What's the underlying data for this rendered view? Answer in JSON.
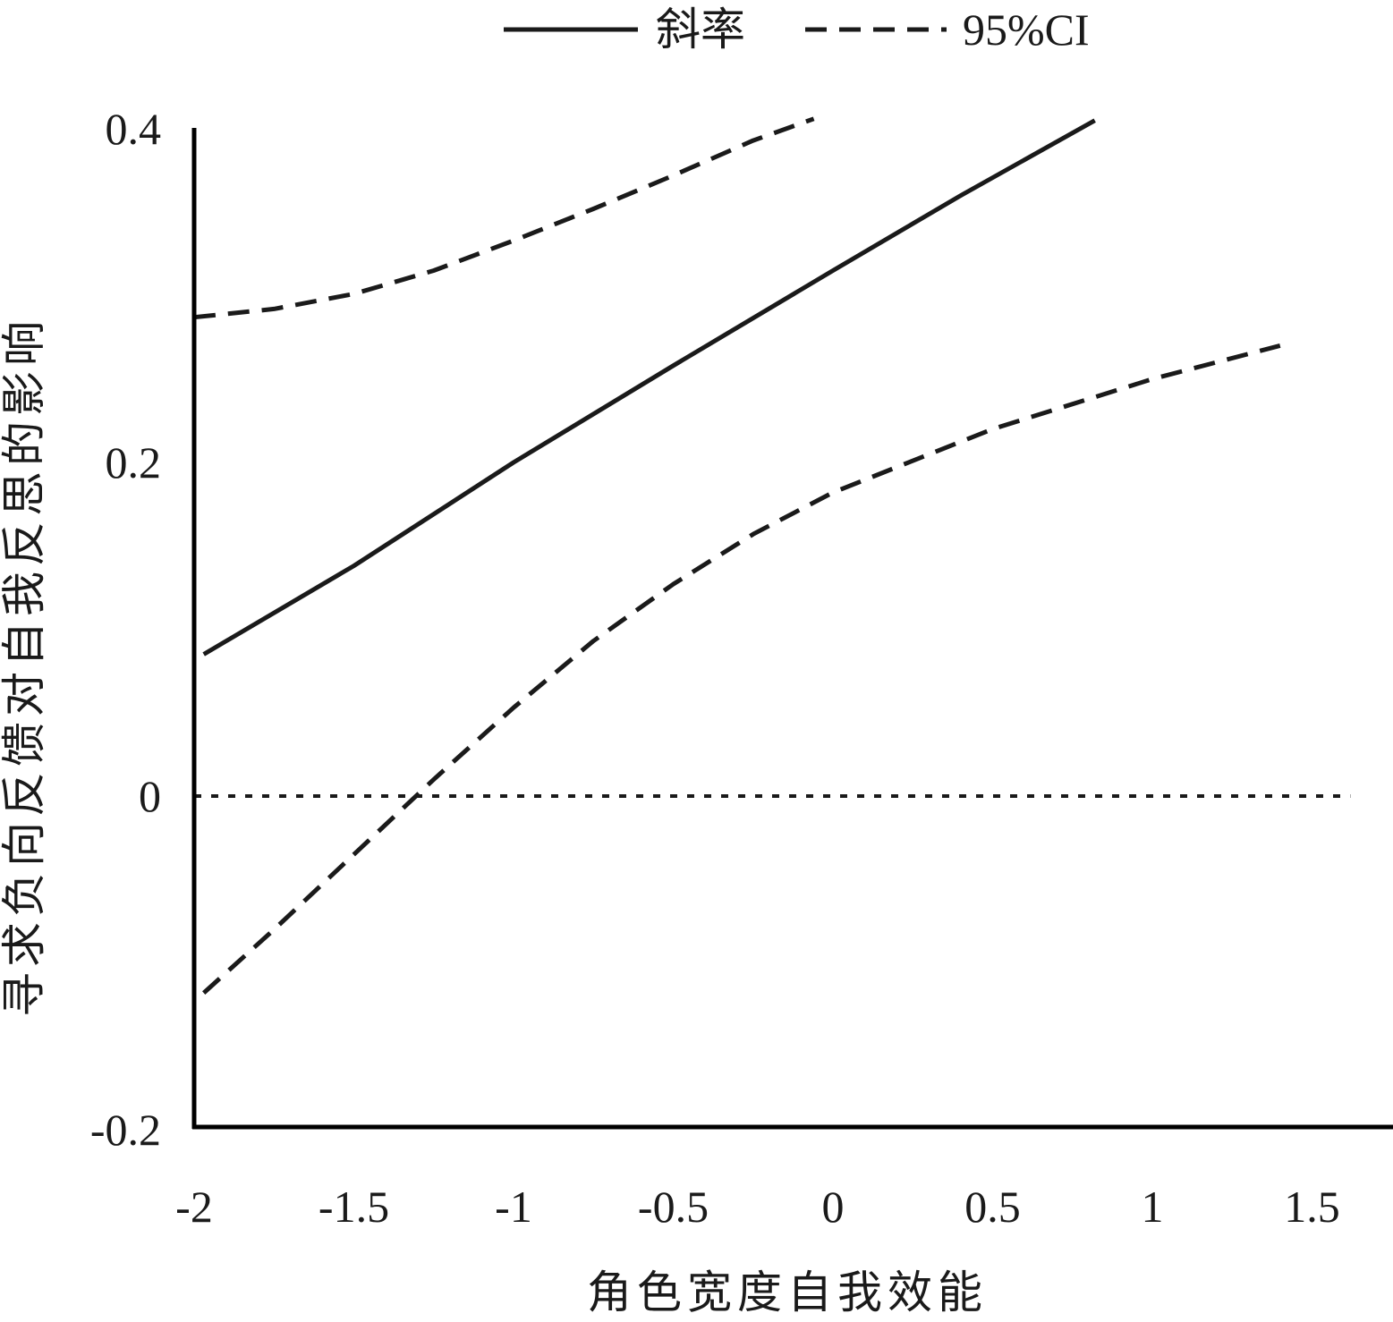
{
  "chart_data": {
    "type": "line",
    "xlabel": "角色宽度自我效能",
    "ylabel": "寻求负向反馈对自我反思的影响",
    "xlim": [
      -2,
      1.8
    ],
    "ylim": [
      -0.2,
      0.4
    ],
    "x_ticks": [
      "-2",
      "-1.5",
      "-1",
      "-0.5",
      "0",
      "0.5",
      "1",
      "1.5"
    ],
    "y_ticks": [
      "0.4",
      "0.2",
      "0",
      "-0.2"
    ],
    "legend_position": "top",
    "legend": {
      "slope_label": "斜率",
      "ci_label": "95%CI"
    },
    "colors": {
      "lines": "#1a1a1a",
      "axis": "#000000"
    },
    "series": [
      {
        "name": "斜率",
        "style": "solid",
        "x": [
          -1.97,
          -1.5,
          -1.0,
          -0.5,
          0.0,
          0.4,
          0.82
        ],
        "y": [
          0.085,
          0.138,
          0.2,
          0.258,
          0.315,
          0.36,
          0.405
        ]
      },
      {
        "name": "95%CI",
        "style": "dashed",
        "x": [
          -2.0,
          -1.75,
          -1.5,
          -1.25,
          -1.0,
          -0.75,
          -0.5,
          -0.25,
          -0.06
        ],
        "y": [
          0.287,
          0.292,
          0.301,
          0.315,
          0.333,
          0.352,
          0.372,
          0.393,
          0.406
        ]
      },
      {
        "name": "95%CI",
        "style": "dashed",
        "x": [
          -1.97,
          -1.75,
          -1.5,
          -1.25,
          -1.0,
          -0.75,
          -0.5,
          -0.25,
          0.0,
          0.5,
          1.0,
          1.4
        ],
        "y": [
          -0.118,
          -0.08,
          -0.035,
          0.01,
          0.053,
          0.093,
          0.127,
          0.157,
          0.182,
          0.22,
          0.25,
          0.27
        ]
      }
    ],
    "reference_line": {
      "y": 0,
      "x_range": [
        -2,
        1.62
      ],
      "style": "dotted"
    }
  }
}
